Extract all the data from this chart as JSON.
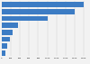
{
  "values": [
    1800,
    1600,
    1000,
    350,
    240,
    170,
    115,
    85
  ],
  "bar_color": "#3c7cc4",
  "background_color": "#f2f2f2",
  "grid_color": "#cccccc",
  "xlim": [
    0,
    1900
  ],
  "bar_height": 0.75,
  "xticks": [
    0,
    200,
    400,
    600,
    800,
    1000,
    1200,
    1400,
    1600,
    1800
  ],
  "xtick_labels": [
    "0",
    "200",
    "400",
    "600",
    "800",
    "1,000",
    "1,200",
    "1,400",
    "1,600",
    "1,800"
  ]
}
